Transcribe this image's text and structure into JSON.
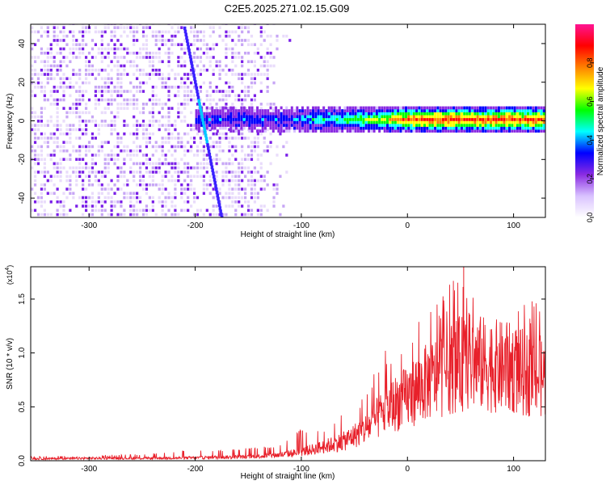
{
  "title": "C2E5.2025.271.02.15.G09",
  "chart_data": [
    {
      "type": "heatmap",
      "title": "C2E5.2025.271.02.15.G09",
      "xlabel": "Height of straight line (km)",
      "ylabel": "Frequency (Hz)",
      "xlim": [
        -355,
        130
      ],
      "ylim": [
        -50,
        50
      ],
      "x_ticks": [
        -300,
        -200,
        -100,
        0,
        100
      ],
      "x_tick_labels": [
        "-300",
        "-200",
        "-100",
        "0",
        "100"
      ],
      "y_ticks": [
        -40,
        -20,
        0,
        20,
        40
      ],
      "y_tick_labels": [
        "-40",
        "-20",
        "0",
        "20",
        "40"
      ],
      "colorbar": {
        "label": "Normalized spectral amplitude",
        "range": [
          0,
          1
        ],
        "ticks": [
          0.0,
          0.2,
          0.4,
          0.6,
          0.8
        ],
        "tick_labels": [
          "0.0",
          "0.2",
          "0.4",
          "0.6",
          "0.8"
        ],
        "colors": [
          "#ffffff",
          "#d9c2ff",
          "#8a2be2",
          "#0000ff",
          "#00ffff",
          "#00ff00",
          "#ffff00",
          "#ff8000",
          "#ff0000",
          "#ff1493"
        ]
      },
      "features": {
        "broadband_noise_region_km": [
          -355,
          -110
        ],
        "narrow_band_center_hz": 0,
        "narrow_band_start_km": -200,
        "direct_arrival_trace": {
          "km": [
            -210,
            -175
          ],
          "hz": [
            48,
            -50
          ]
        },
        "strongest_amplitude_km_range": [
          -20,
          90
        ]
      }
    },
    {
      "type": "line",
      "title": "",
      "xlabel": "Height of straight line (km)",
      "ylabel": "SNR (10 * v/v)",
      "y_multiplier": "(x10",
      "y_multiplier_exp": "4",
      "y_multiplier_close": ")",
      "xlim": [
        -355,
        130
      ],
      "ylim": [
        0,
        1.8
      ],
      "x_ticks": [
        -300,
        -200,
        -100,
        0,
        100
      ],
      "x_tick_labels": [
        "-300",
        "-200",
        "-100",
        "0",
        "100"
      ],
      "y_ticks": [
        0.0,
        0.5,
        1.0,
        1.5
      ],
      "y_tick_labels": [
        "0.0",
        "0.5",
        "1.0",
        "1.5"
      ],
      "line_color": "#e8202a",
      "series": [
        {
          "name": "SNR",
          "x": [
            -355,
            -300,
            -250,
            -200,
            -180,
            -150,
            -120,
            -100,
            -80,
            -60,
            -50,
            -40,
            -30,
            -20,
            -10,
            0,
            10,
            20,
            30,
            40,
            50,
            60,
            70,
            80,
            90,
            100,
            110,
            120,
            130
          ],
          "y": [
            0.02,
            0.025,
            0.025,
            0.03,
            0.035,
            0.04,
            0.06,
            0.09,
            0.14,
            0.2,
            0.26,
            0.32,
            0.42,
            0.52,
            0.6,
            0.65,
            0.75,
            0.82,
            0.88,
            0.95,
            1.0,
            1.02,
            1.0,
            0.98,
            0.96,
            0.95,
            0.9,
            0.88,
            0.85
          ],
          "peak_envelope": [
            0.04,
            0.05,
            0.06,
            0.1,
            0.1,
            0.12,
            0.15,
            0.3,
            0.3,
            0.45,
            0.5,
            0.6,
            0.85,
            1.05,
            0.9,
            1.2,
            1.35,
            1.45,
            1.45,
            1.7,
            1.8,
            1.55,
            1.55,
            1.35,
            1.35,
            1.4,
            1.45,
            1.5,
            1.45
          ],
          "spike_annotations": [
            {
              "x": 53,
              "y": 1.8
            }
          ]
        }
      ]
    }
  ]
}
